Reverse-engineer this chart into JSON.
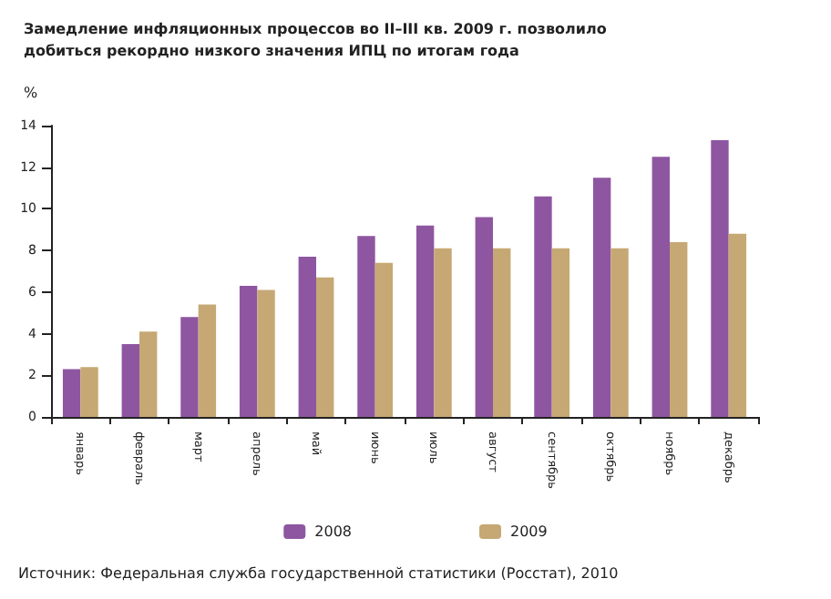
{
  "chart_data": {
    "type": "bar",
    "title": "Замедление инфляционных процессов во II–III кв. 2009 г. позволило добиться рекордно низкого значения ИПЦ по итогам года",
    "ylabel": "%",
    "categories": [
      "январь",
      "февраль",
      "март",
      "апрель",
      "май",
      "июнь",
      "июль",
      "август",
      "сентябрь",
      "октябрь",
      "ноябрь",
      "декабрь"
    ],
    "series": [
      {
        "name": "2008",
        "color": "#8e56a0",
        "values": [
          2.3,
          3.5,
          4.8,
          6.3,
          7.7,
          8.7,
          9.2,
          9.6,
          10.6,
          11.5,
          12.5,
          13.3
        ]
      },
      {
        "name": "2009",
        "color": "#c6a874",
        "values": [
          2.4,
          4.1,
          5.4,
          6.1,
          6.7,
          7.4,
          8.1,
          8.1,
          8.1,
          8.1,
          8.4,
          8.8
        ]
      }
    ],
    "ylim": [
      0,
      14
    ],
    "yticks": [
      0,
      2,
      4,
      6,
      8,
      10,
      12,
      14
    ],
    "grid": false,
    "legend": "bottom",
    "annotations": [
      "Источник: Федеральная служба государственной статистики (Росстат), 2010"
    ]
  }
}
